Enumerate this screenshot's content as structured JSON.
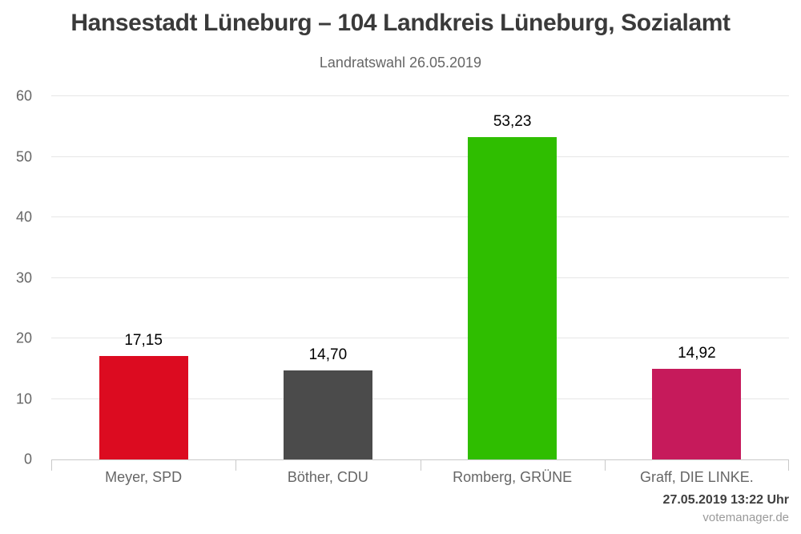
{
  "header": {
    "title": "Hansestadt Lüneburg – 104 Landkreis Lüneburg, Sozialamt",
    "subtitle": "Landratswahl 26.05.2019"
  },
  "chart_data": {
    "type": "bar",
    "title": "Hansestadt Lüneburg – 104 Landkreis Lüneburg, Sozialamt",
    "subtitle": "Landratswahl 26.05.2019",
    "categories": [
      "Meyer, SPD",
      "Böther, CDU",
      "Romberg, GRÜNE",
      "Graff, DIE LINKE."
    ],
    "values": [
      17.15,
      14.7,
      53.23,
      14.92
    ],
    "value_labels": [
      "17,15",
      "14,70",
      "53,23",
      "14,92"
    ],
    "bar_colors": [
      "#dc0b20",
      "#4b4b4b",
      "#2fbe00",
      "#c61a5b"
    ],
    "xlabel": "",
    "ylabel": "",
    "ylim": [
      0,
      60
    ],
    "yticks": [
      0,
      10,
      20,
      30,
      40,
      50,
      60
    ],
    "grid": "horizontal",
    "legend": "none",
    "unit": "percent"
  },
  "style": {
    "gridline_color": "#e6e6e6",
    "axis_color": "#c9c9c9",
    "label_color": "#666666",
    "value_label_color": "#000000",
    "title_color": "#3a3a3a"
  },
  "footer": {
    "timestamp": "27.05.2019 13:22 Uhr",
    "source": "votemanager.de"
  }
}
